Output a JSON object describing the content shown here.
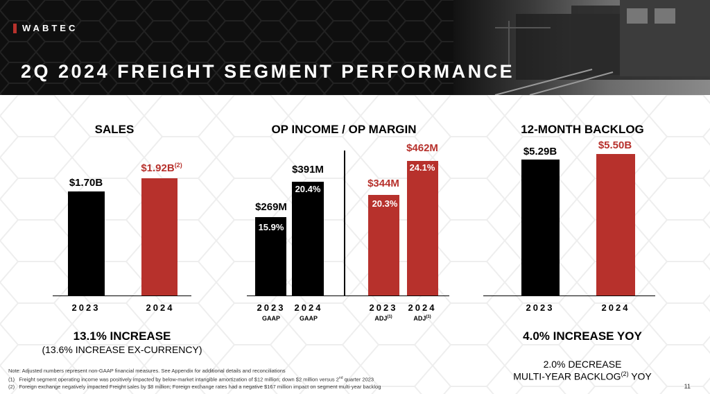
{
  "brand": "WABTEC",
  "title": "2Q 2024 FREIGHT SEGMENT PERFORMANCE",
  "colors": {
    "accent": "#b7312c",
    "dark": "#000000",
    "header_bg": "#0f0f0f"
  },
  "sales": {
    "title": "SALES",
    "bar_2023_label": "$1.70B",
    "bar_2024_label": "$1.92B",
    "bar_2024_note": "(2)",
    "year_2023": "2023",
    "year_2024": "2024",
    "summary": "13.1% INCREASE",
    "summary_sub": "(13.6% INCREASE EX-CURRENCY)"
  },
  "op_income": {
    "title": "OP INCOME / OP MARGIN",
    "gaap_2023_value": "$269M",
    "gaap_2023_margin": "15.9%",
    "gaap_2024_value": "$391M",
    "gaap_2024_margin": "20.4%",
    "adj_2023_value": "$344M",
    "adj_2023_margin": "20.3%",
    "adj_2024_value": "$462M",
    "adj_2024_margin": "24.1%",
    "year_2023": "2023",
    "year_2024": "2024",
    "gaap_label": "GAAP",
    "adj_label": "ADJ",
    "adj_note": "(1)"
  },
  "backlog": {
    "title": "12-MONTH BACKLOG",
    "bar_2023_label": "$5.29B",
    "bar_2024_label": "$5.50B",
    "year_2023": "2023",
    "year_2024": "2024",
    "summary": "4.0% INCREASE YOY",
    "sub_line1": "2.0% DECREASE",
    "sub_line2_pre": "MULTI-YEAR BACKLOG",
    "sub_line2_note": "(2)",
    "sub_line2_post": " YOY"
  },
  "chart_data": [
    {
      "type": "bar",
      "title": "SALES",
      "categories": [
        "2023",
        "2024"
      ],
      "values": [
        1.7,
        1.92
      ],
      "unit": "$B"
    },
    {
      "type": "bar",
      "title": "OP INCOME / OP MARGIN",
      "categories": [
        "2023 GAAP",
        "2024 GAAP",
        "2023 ADJ(1)",
        "2024 ADJ(1)"
      ],
      "series": [
        {
          "name": "Op Income ($M)",
          "values": [
            269,
            391,
            344,
            462
          ]
        },
        {
          "name": "Op Margin (%)",
          "values": [
            15.9,
            20.4,
            20.3,
            24.1
          ]
        }
      ]
    },
    {
      "type": "bar",
      "title": "12-MONTH BACKLOG",
      "categories": [
        "2023",
        "2024"
      ],
      "values": [
        5.29,
        5.5
      ],
      "unit": "$B"
    }
  ],
  "notes": {
    "line0": "Note: Adjusted numbers represent non-GAAP financial measures. See Appendix for additional details and reconciliations",
    "line1_num": "(1)",
    "line1_pre": "Freight segment operating income was positively impacted by below-market intangible amortization of $12 million; down $2 million versus 2",
    "line1_sup": "nd",
    "line1_post": " quarter 2023",
    "line2_num": "(2)",
    "line2": "Foreign exchange negatively impacted Freight sales by $8 million; Foreign exchange rates had a negative $167 million impact on segment multi-year backlog"
  },
  "page_number": "11"
}
